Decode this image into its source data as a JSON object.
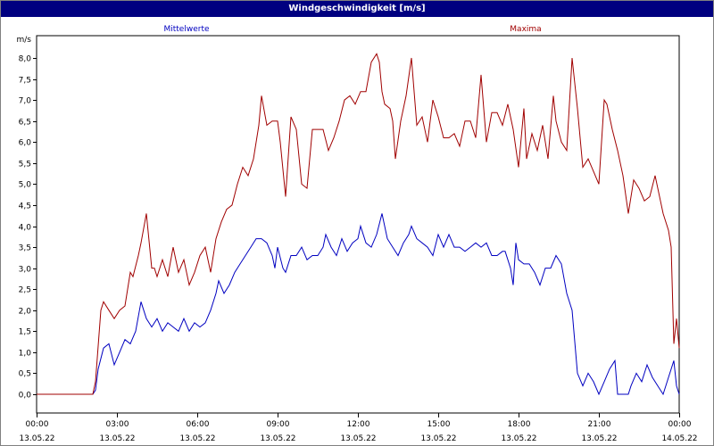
{
  "window": {
    "title": "Windgeschwindigkeit [m/s]"
  },
  "chart_data": {
    "type": "line",
    "ylabel": "m/s",
    "ylim": [
      0,
      8.5
    ],
    "xlim": [
      0,
      24
    ],
    "grid": true,
    "legend_placement": "top",
    "y_ticks": [
      {
        "v": 0,
        "label": "0,0"
      },
      {
        "v": 0.5,
        "label": "0,5"
      },
      {
        "v": 1,
        "label": "1,0"
      },
      {
        "v": 1.5,
        "label": "1,5"
      },
      {
        "v": 2,
        "label": "2,0"
      },
      {
        "v": 2.5,
        "label": "2,5"
      },
      {
        "v": 3,
        "label": "3,0"
      },
      {
        "v": 3.5,
        "label": "3,5"
      },
      {
        "v": 4,
        "label": "4,0"
      },
      {
        "v": 4.5,
        "label": "4,5"
      },
      {
        "v": 5,
        "label": "5,0"
      },
      {
        "v": 5.5,
        "label": "5,5"
      },
      {
        "v": 6,
        "label": "6,0"
      },
      {
        "v": 6.5,
        "label": "6,5"
      },
      {
        "v": 7,
        "label": "7,0"
      },
      {
        "v": 7.5,
        "label": "7,5"
      },
      {
        "v": 8,
        "label": "8,0"
      }
    ],
    "x_ticks": [
      {
        "v": 0,
        "time": "00:00",
        "date": "13.05.22"
      },
      {
        "v": 3,
        "time": "03:00",
        "date": "13.05.22"
      },
      {
        "v": 6,
        "time": "06:00",
        "date": "13.05.22"
      },
      {
        "v": 9,
        "time": "09:00",
        "date": "13.05.22"
      },
      {
        "v": 12,
        "time": "12:00",
        "date": "13.05.22"
      },
      {
        "v": 15,
        "time": "15:00",
        "date": "13.05.22"
      },
      {
        "v": 18,
        "time": "18:00",
        "date": "13.05.22"
      },
      {
        "v": 21,
        "time": "21:00",
        "date": "13.05.22"
      },
      {
        "v": 24,
        "time": "00:00",
        "date": "14.05.22"
      }
    ],
    "series": [
      {
        "name": "Mittelwerte",
        "color": "#0000c0",
        "points": [
          [
            0,
            0
          ],
          [
            2.1,
            0
          ],
          [
            2.2,
            0.1
          ],
          [
            2.3,
            0.6
          ],
          [
            2.5,
            1.1
          ],
          [
            2.7,
            1.2
          ],
          [
            2.9,
            0.7
          ],
          [
            3.1,
            1.0
          ],
          [
            3.3,
            1.3
          ],
          [
            3.5,
            1.2
          ],
          [
            3.7,
            1.5
          ],
          [
            3.9,
            2.2
          ],
          [
            4.1,
            1.8
          ],
          [
            4.3,
            1.6
          ],
          [
            4.5,
            1.8
          ],
          [
            4.7,
            1.5
          ],
          [
            4.9,
            1.7
          ],
          [
            5.1,
            1.6
          ],
          [
            5.3,
            1.5
          ],
          [
            5.5,
            1.8
          ],
          [
            5.7,
            1.5
          ],
          [
            5.9,
            1.7
          ],
          [
            6.1,
            1.6
          ],
          [
            6.3,
            1.7
          ],
          [
            6.5,
            2.0
          ],
          [
            6.7,
            2.4
          ],
          [
            6.8,
            2.7
          ],
          [
            7.0,
            2.4
          ],
          [
            7.2,
            2.6
          ],
          [
            7.4,
            2.9
          ],
          [
            7.6,
            3.1
          ],
          [
            7.8,
            3.3
          ],
          [
            8.0,
            3.5
          ],
          [
            8.2,
            3.7
          ],
          [
            8.4,
            3.7
          ],
          [
            8.6,
            3.6
          ],
          [
            8.8,
            3.3
          ],
          [
            8.9,
            3.0
          ],
          [
            9.0,
            3.5
          ],
          [
            9.2,
            3.0
          ],
          [
            9.3,
            2.9
          ],
          [
            9.5,
            3.3
          ],
          [
            9.7,
            3.3
          ],
          [
            9.9,
            3.5
          ],
          [
            10.1,
            3.2
          ],
          [
            10.3,
            3.3
          ],
          [
            10.5,
            3.3
          ],
          [
            10.7,
            3.5
          ],
          [
            10.8,
            3.8
          ],
          [
            11.0,
            3.5
          ],
          [
            11.2,
            3.3
          ],
          [
            11.4,
            3.7
          ],
          [
            11.6,
            3.4
          ],
          [
            11.8,
            3.6
          ],
          [
            12.0,
            3.7
          ],
          [
            12.1,
            4.0
          ],
          [
            12.3,
            3.6
          ],
          [
            12.5,
            3.5
          ],
          [
            12.7,
            3.8
          ],
          [
            12.9,
            4.3
          ],
          [
            13.1,
            3.7
          ],
          [
            13.3,
            3.5
          ],
          [
            13.5,
            3.3
          ],
          [
            13.7,
            3.6
          ],
          [
            13.9,
            3.8
          ],
          [
            14.0,
            4.0
          ],
          [
            14.2,
            3.7
          ],
          [
            14.4,
            3.6
          ],
          [
            14.6,
            3.5
          ],
          [
            14.8,
            3.3
          ],
          [
            15.0,
            3.8
          ],
          [
            15.2,
            3.5
          ],
          [
            15.4,
            3.8
          ],
          [
            15.6,
            3.5
          ],
          [
            15.8,
            3.5
          ],
          [
            16.0,
            3.4
          ],
          [
            16.2,
            3.5
          ],
          [
            16.4,
            3.6
          ],
          [
            16.6,
            3.5
          ],
          [
            16.8,
            3.6
          ],
          [
            17.0,
            3.3
          ],
          [
            17.2,
            3.3
          ],
          [
            17.4,
            3.4
          ],
          [
            17.5,
            3.4
          ],
          [
            17.7,
            3.0
          ],
          [
            17.8,
            2.6
          ],
          [
            17.9,
            3.6
          ],
          [
            18.0,
            3.2
          ],
          [
            18.2,
            3.1
          ],
          [
            18.4,
            3.1
          ],
          [
            18.6,
            2.9
          ],
          [
            18.8,
            2.6
          ],
          [
            19.0,
            3.0
          ],
          [
            19.2,
            3.0
          ],
          [
            19.4,
            3.3
          ],
          [
            19.6,
            3.1
          ],
          [
            19.8,
            2.4
          ],
          [
            20.0,
            2.0
          ],
          [
            20.2,
            0.5
          ],
          [
            20.4,
            0.2
          ],
          [
            20.6,
            0.5
          ],
          [
            20.8,
            0.3
          ],
          [
            21.0,
            0.0
          ],
          [
            21.2,
            0.3
          ],
          [
            21.4,
            0.6
          ],
          [
            21.6,
            0.8
          ],
          [
            21.7,
            0.0
          ],
          [
            21.9,
            0.0
          ],
          [
            22.1,
            0.0
          ],
          [
            22.2,
            0.2
          ],
          [
            22.4,
            0.5
          ],
          [
            22.6,
            0.3
          ],
          [
            22.8,
            0.7
          ],
          [
            23.0,
            0.4
          ],
          [
            23.2,
            0.2
          ],
          [
            23.4,
            0.0
          ],
          [
            23.6,
            0.4
          ],
          [
            23.8,
            0.8
          ],
          [
            23.9,
            0.2
          ],
          [
            24.0,
            0.0
          ]
        ]
      },
      {
        "name": "Maxima",
        "color": "#a00000",
        "points": [
          [
            0,
            0
          ],
          [
            2.1,
            0
          ],
          [
            2.2,
            0.3
          ],
          [
            2.4,
            2.0
          ],
          [
            2.5,
            2.2
          ],
          [
            2.7,
            2.0
          ],
          [
            2.9,
            1.8
          ],
          [
            3.1,
            2.0
          ],
          [
            3.3,
            2.1
          ],
          [
            3.5,
            2.9
          ],
          [
            3.6,
            2.8
          ],
          [
            3.8,
            3.3
          ],
          [
            3.9,
            3.6
          ],
          [
            4.1,
            4.3
          ],
          [
            4.3,
            3.0
          ],
          [
            4.4,
            3.0
          ],
          [
            4.5,
            2.8
          ],
          [
            4.7,
            3.2
          ],
          [
            4.9,
            2.8
          ],
          [
            5.1,
            3.5
          ],
          [
            5.3,
            2.9
          ],
          [
            5.5,
            3.2
          ],
          [
            5.7,
            2.6
          ],
          [
            5.9,
            2.9
          ],
          [
            6.1,
            3.3
          ],
          [
            6.3,
            3.5
          ],
          [
            6.5,
            2.9
          ],
          [
            6.7,
            3.7
          ],
          [
            6.9,
            4.1
          ],
          [
            7.1,
            4.4
          ],
          [
            7.3,
            4.5
          ],
          [
            7.5,
            5.0
          ],
          [
            7.7,
            5.4
          ],
          [
            7.9,
            5.2
          ],
          [
            8.1,
            5.6
          ],
          [
            8.3,
            6.4
          ],
          [
            8.4,
            7.1
          ],
          [
            8.6,
            6.4
          ],
          [
            8.8,
            6.5
          ],
          [
            9.0,
            6.5
          ],
          [
            9.1,
            6.0
          ],
          [
            9.3,
            4.7
          ],
          [
            9.5,
            6.6
          ],
          [
            9.7,
            6.3
          ],
          [
            9.9,
            5.0
          ],
          [
            10.1,
            4.9
          ],
          [
            10.3,
            6.3
          ],
          [
            10.5,
            6.3
          ],
          [
            10.7,
            6.3
          ],
          [
            10.9,
            5.8
          ],
          [
            11.1,
            6.1
          ],
          [
            11.3,
            6.5
          ],
          [
            11.5,
            7.0
          ],
          [
            11.7,
            7.1
          ],
          [
            11.9,
            6.9
          ],
          [
            12.1,
            7.2
          ],
          [
            12.3,
            7.2
          ],
          [
            12.5,
            7.9
          ],
          [
            12.7,
            8.1
          ],
          [
            12.8,
            7.9
          ],
          [
            12.9,
            7.2
          ],
          [
            13.0,
            6.9
          ],
          [
            13.2,
            6.8
          ],
          [
            13.3,
            6.5
          ],
          [
            13.4,
            5.6
          ],
          [
            13.6,
            6.5
          ],
          [
            13.8,
            7.1
          ],
          [
            14.0,
            8.0
          ],
          [
            14.2,
            6.4
          ],
          [
            14.4,
            6.6
          ],
          [
            14.6,
            6.0
          ],
          [
            14.8,
            7.0
          ],
          [
            15.0,
            6.6
          ],
          [
            15.2,
            6.1
          ],
          [
            15.4,
            6.1
          ],
          [
            15.6,
            6.2
          ],
          [
            15.8,
            5.9
          ],
          [
            16.0,
            6.5
          ],
          [
            16.2,
            6.5
          ],
          [
            16.4,
            6.1
          ],
          [
            16.6,
            7.6
          ],
          [
            16.8,
            6.0
          ],
          [
            17.0,
            6.7
          ],
          [
            17.2,
            6.7
          ],
          [
            17.4,
            6.4
          ],
          [
            17.6,
            6.9
          ],
          [
            17.8,
            6.3
          ],
          [
            18.0,
            5.4
          ],
          [
            18.2,
            6.8
          ],
          [
            18.3,
            5.6
          ],
          [
            18.5,
            6.2
          ],
          [
            18.7,
            5.8
          ],
          [
            18.9,
            6.4
          ],
          [
            19.1,
            5.6
          ],
          [
            19.3,
            7.1
          ],
          [
            19.4,
            6.5
          ],
          [
            19.6,
            6.0
          ],
          [
            19.8,
            5.8
          ],
          [
            20.0,
            8.0
          ],
          [
            20.2,
            6.8
          ],
          [
            20.4,
            5.4
          ],
          [
            20.6,
            5.6
          ],
          [
            20.8,
            5.3
          ],
          [
            21.0,
            5.0
          ],
          [
            21.2,
            7.0
          ],
          [
            21.3,
            6.9
          ],
          [
            21.5,
            6.3
          ],
          [
            21.7,
            5.8
          ],
          [
            21.9,
            5.2
          ],
          [
            22.1,
            4.3
          ],
          [
            22.3,
            5.1
          ],
          [
            22.5,
            4.9
          ],
          [
            22.7,
            4.6
          ],
          [
            22.9,
            4.7
          ],
          [
            23.1,
            5.2
          ],
          [
            23.3,
            4.6
          ],
          [
            23.4,
            4.3
          ],
          [
            23.6,
            3.9
          ],
          [
            23.7,
            3.5
          ],
          [
            23.8,
            1.2
          ],
          [
            23.9,
            1.8
          ],
          [
            24.0,
            1.1
          ]
        ]
      }
    ]
  }
}
